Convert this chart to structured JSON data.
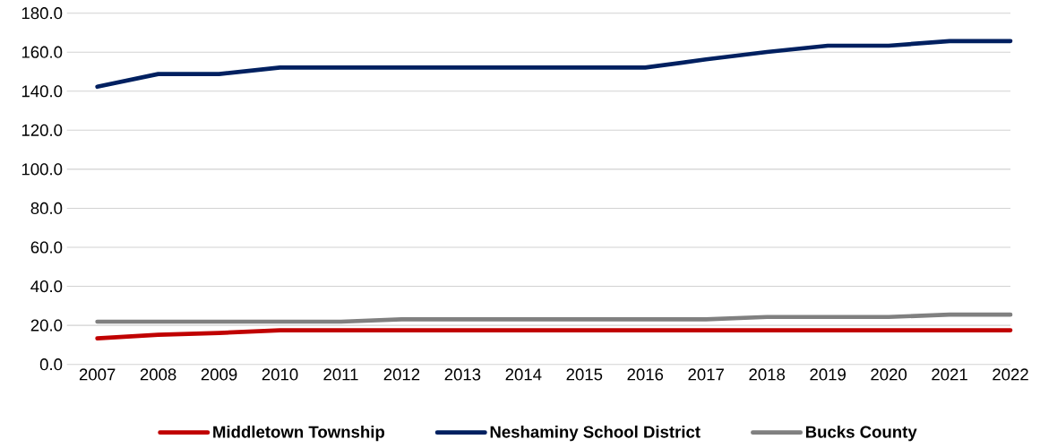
{
  "chart_data": {
    "type": "line",
    "categories": [
      "2007",
      "2008",
      "2009",
      "2010",
      "2011",
      "2012",
      "2013",
      "2014",
      "2015",
      "2016",
      "2017",
      "2018",
      "2019",
      "2020",
      "2021",
      "2022"
    ],
    "series": [
      {
        "name": "Middletown Township",
        "color": "#c00000",
        "values": [
          13.3,
          15.2,
          16.1,
          17.5,
          17.5,
          17.5,
          17.5,
          17.5,
          17.5,
          17.5,
          17.5,
          17.5,
          17.5,
          17.5,
          17.5,
          17.5
        ]
      },
      {
        "name": "Neshaminy School District",
        "color": "#002060",
        "values": [
          142.3,
          148.8,
          148.8,
          152.1,
          152.1,
          152.1,
          152.1,
          152.1,
          152.1,
          152.1,
          156.3,
          160.1,
          163.3,
          163.3,
          165.7,
          165.7
        ]
      },
      {
        "name": "Bucks County",
        "color": "#808080",
        "values": [
          21.9,
          21.9,
          21.9,
          21.9,
          21.9,
          23.1,
          23.1,
          23.1,
          23.1,
          23.1,
          23.1,
          24.3,
          24.3,
          24.3,
          25.5,
          25.5
        ]
      }
    ],
    "ylim": [
      0,
      180
    ],
    "yticks": [
      {
        "value": 0,
        "label": "0.0"
      },
      {
        "value": 20,
        "label": "20.0"
      },
      {
        "value": 40,
        "label": "40.0"
      },
      {
        "value": 60,
        "label": "60.0"
      },
      {
        "value": 80,
        "label": "80.0"
      },
      {
        "value": 100,
        "label": "100.0"
      },
      {
        "value": 120,
        "label": "120.0"
      },
      {
        "value": 140,
        "label": "140.0"
      },
      {
        "value": 160,
        "label": "160.0"
      },
      {
        "value": 180,
        "label": "180.0"
      }
    ],
    "grid": "y",
    "legend": "bottom",
    "marker": "none",
    "line_style": "solid"
  }
}
